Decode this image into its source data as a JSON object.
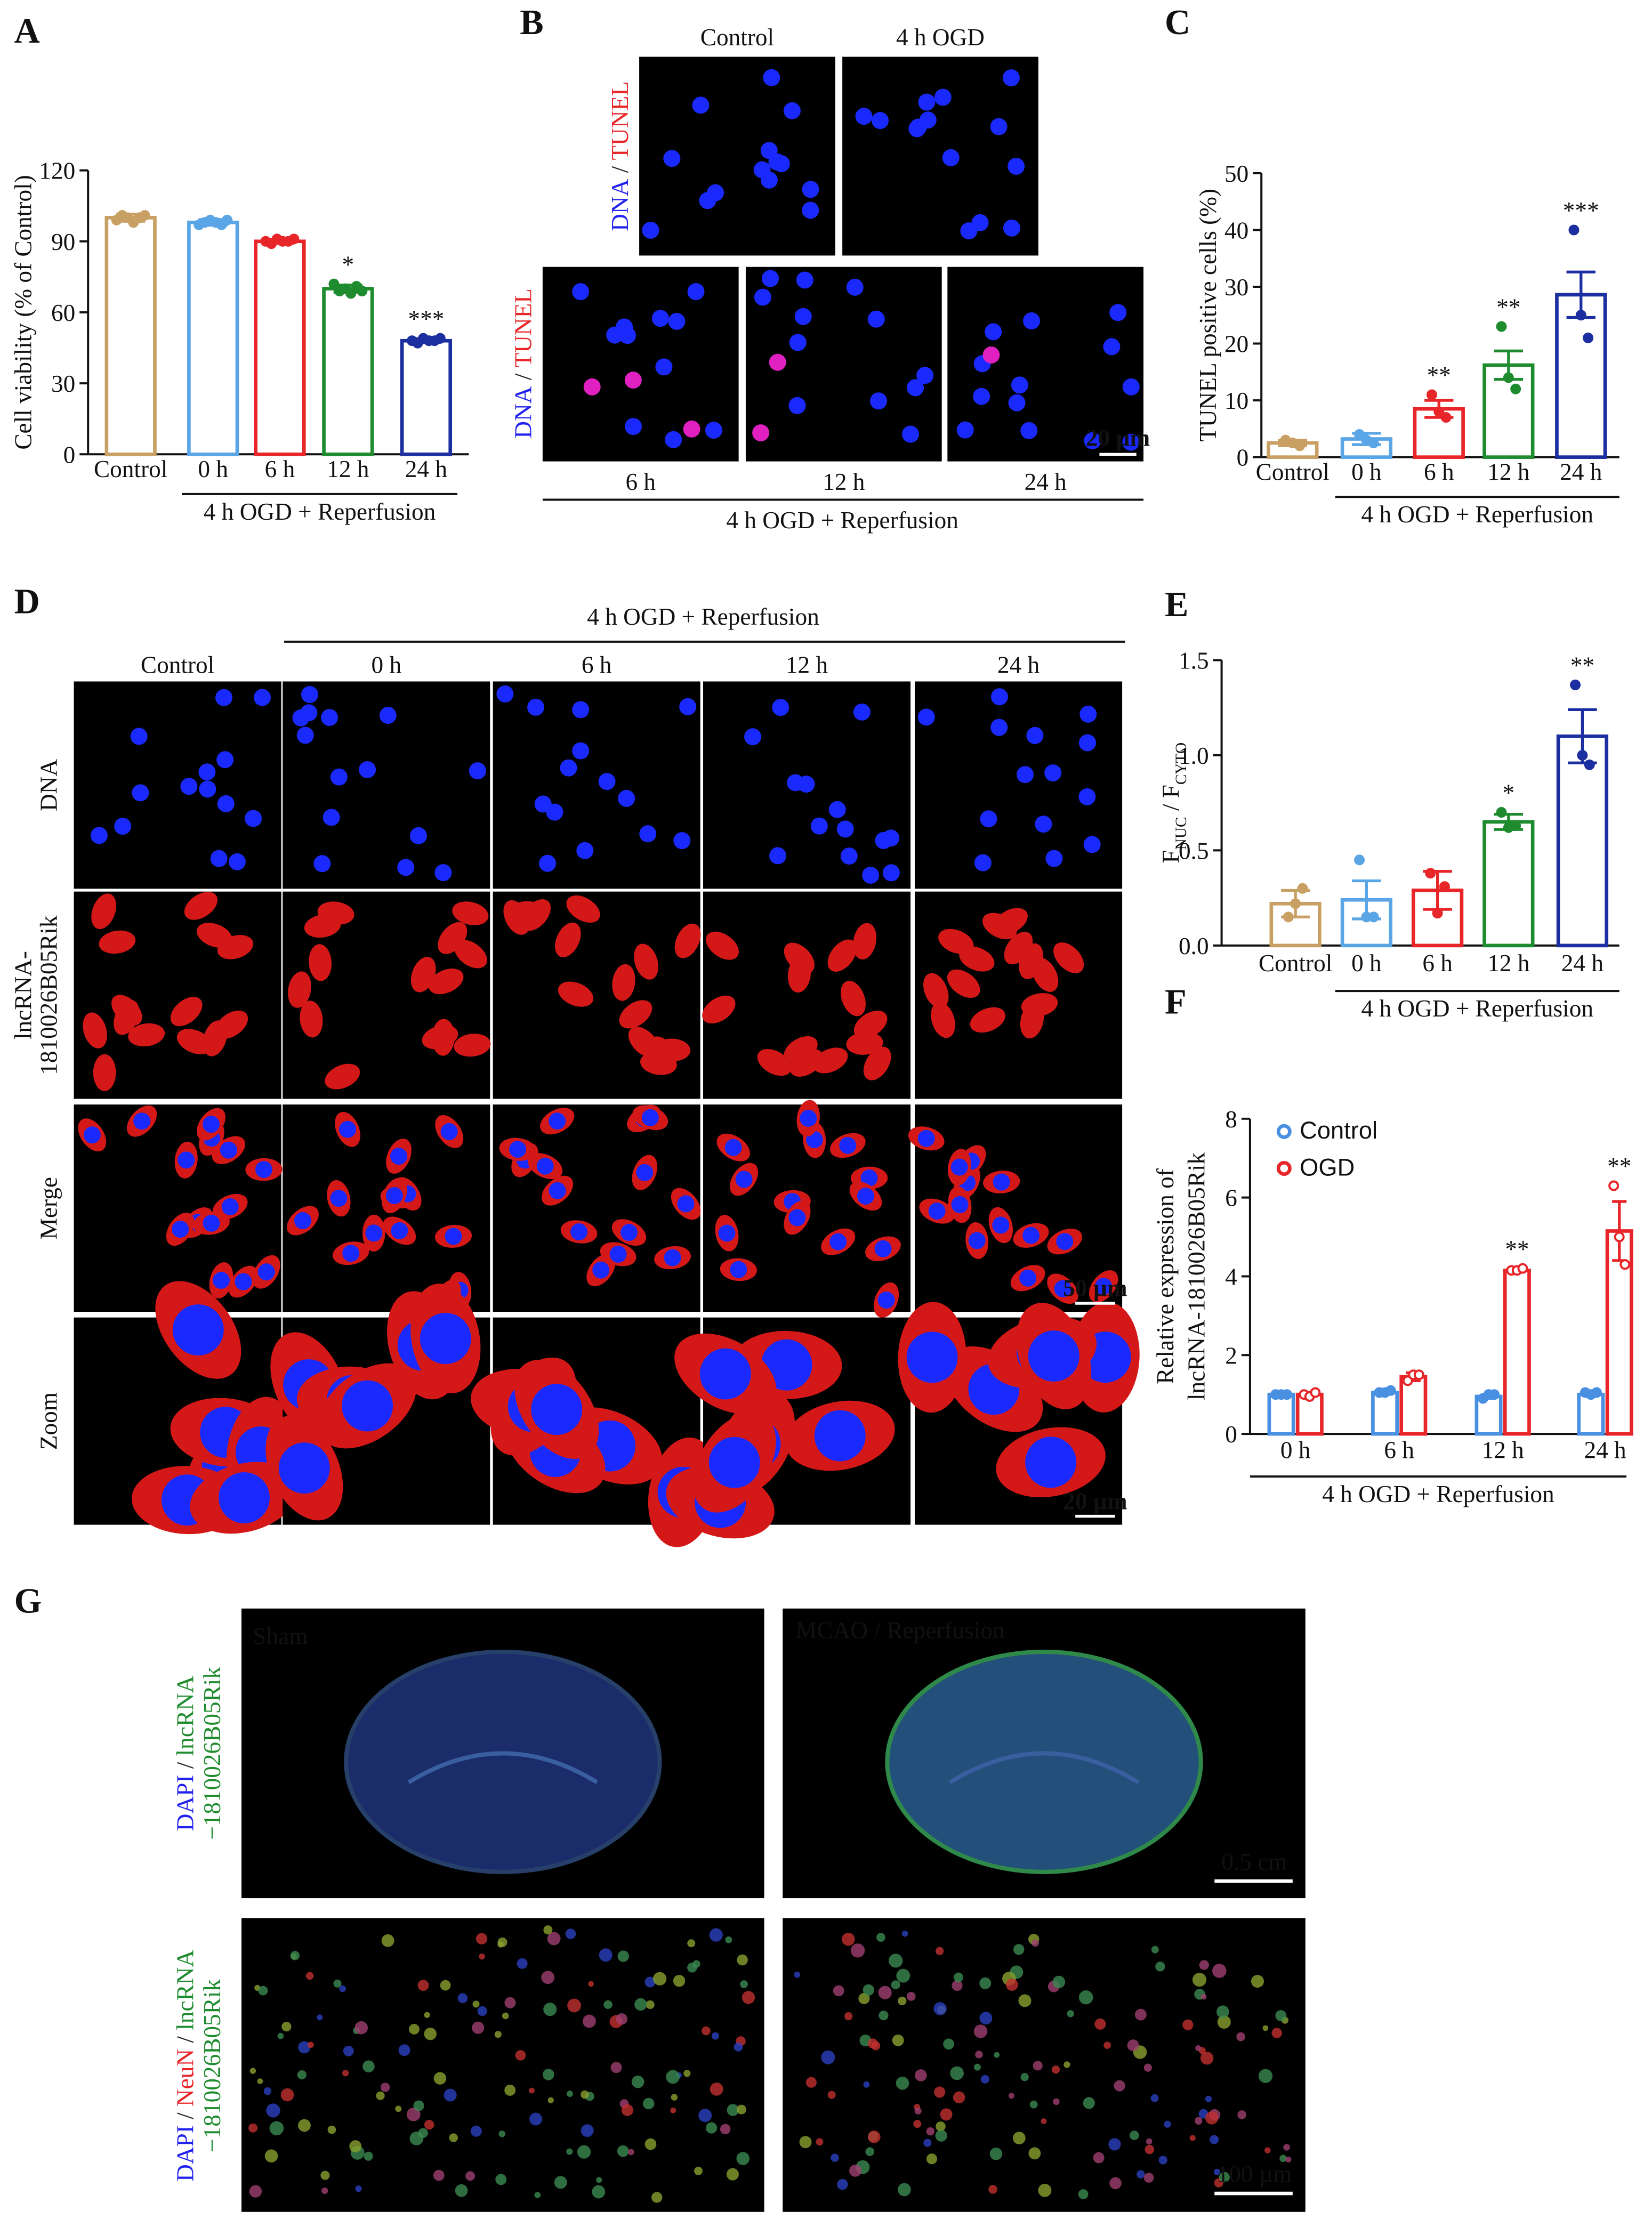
{
  "chart_data": [
    {
      "type": "bar",
      "panel": "A",
      "categories": [
        "Control",
        "0 h",
        "6 h",
        "12 h",
        "24 h"
      ],
      "values": [
        100,
        98,
        90,
        70,
        48
      ],
      "errors": [
        1.5,
        1.2,
        0.8,
        1.5,
        0.8
      ],
      "points": [
        [
          99,
          101,
          100,
          98,
          100,
          101
        ],
        [
          97,
          98,
          99,
          98,
          97,
          99
        ],
        [
          90,
          89,
          91,
          90,
          90,
          91
        ],
        [
          72,
          69,
          70,
          68,
          71,
          69
        ],
        [
          48,
          47,
          49,
          48,
          48,
          49
        ]
      ],
      "colors": [
        "#c8a063",
        "#5aa5e6",
        "#e8262a",
        "#1e8c2e",
        "#1c2fa0"
      ],
      "significance": [
        null,
        null,
        null,
        "*",
        "***"
      ],
      "group_label": "4 h OGD + Reperfusion",
      "ylabel": [
        "Cell viability (% of Control)"
      ],
      "ylim": [
        0,
        120
      ],
      "yticks": [
        0,
        30,
        60,
        90,
        120
      ]
    },
    {
      "type": "bar",
      "panel": "C",
      "categories": [
        "Control",
        "0 h",
        "6 h",
        "12 h",
        "24 h"
      ],
      "values": [
        2.5,
        3.2,
        8.5,
        16.2,
        28.6
      ],
      "errors": [
        0.5,
        1,
        1.5,
        2.5,
        4
      ],
      "points": [
        [
          3,
          2.5,
          2
        ],
        [
          4,
          3,
          2.5
        ],
        [
          11,
          8,
          7
        ],
        [
          23,
          14,
          12
        ],
        [
          40,
          25,
          21
        ]
      ],
      "colors": [
        "#c8a063",
        "#5aa5e6",
        "#e8262a",
        "#1e8c2e",
        "#1c2fa0"
      ],
      "significance": [
        null,
        null,
        "**",
        "**",
        "***"
      ],
      "group_label": "4 h OGD + Reperfusion",
      "ylabel": [
        "TUNEL positive cells (%)"
      ],
      "ylim": [
        0,
        50
      ],
      "yticks": [
        0,
        10,
        20,
        30,
        40,
        50
      ]
    },
    {
      "type": "bar",
      "panel": "E",
      "categories": [
        "Control",
        "0 h",
        "6 h",
        "12 h",
        "24 h"
      ],
      "values": [
        0.22,
        0.24,
        0.29,
        0.65,
        1.1
      ],
      "errors": [
        0.07,
        0.1,
        0.1,
        0.04,
        0.14
      ],
      "points": [
        [
          0.15,
          0.22,
          0.3
        ],
        [
          0.45,
          0.15,
          0.15
        ],
        [
          0.38,
          0.17,
          0.31
        ],
        [
          0.7,
          0.62,
          0.63
        ],
        [
          1.37,
          1.0,
          0.95
        ]
      ],
      "colors": [
        "#c8a063",
        "#5aa5e6",
        "#e8262a",
        "#1e8c2e",
        "#1c2fa0"
      ],
      "significance": [
        null,
        null,
        null,
        "*",
        "**"
      ],
      "group_label": "4 h OGD + Reperfusion",
      "ylabel_parts": [
        "F",
        "NUC",
        " / F",
        "CYTO"
      ],
      "ylim": [
        0,
        1.5
      ],
      "yticks": [
        {
          "value": 0,
          "label": "0.0"
        },
        0.5,
        {
          "value": 1,
          "label": "1.0"
        },
        1.5
      ]
    },
    {
      "type": "bar",
      "panel": "F",
      "categories": [
        "0 h",
        "6 h",
        "12 h",
        "24 h"
      ],
      "series": [
        {
          "name": "Control",
          "color": "#4a90e2",
          "hollow_points": false,
          "values": [
            1,
            1.05,
            0.95,
            1.0
          ],
          "errors": [
            0.03,
            0.03,
            0.05,
            0.03
          ],
          "points": [
            [
              1,
              1,
              1
            ],
            [
              1.05,
              1.05,
              1.1
            ],
            [
              0.9,
              1.0,
              1.0
            ],
            [
              1.05,
              1.0,
              1.05
            ]
          ],
          "significance": [
            null,
            null,
            null,
            null
          ]
        },
        {
          "name": "OGD",
          "color": "#e8262a",
          "hollow_points": true,
          "values": [
            1.0,
            1.45,
            4.15,
            5.15
          ],
          "errors": [
            0.05,
            0.1,
            0.03,
            0.75
          ],
          "points": [
            [
              1.0,
              0.95,
              1.05
            ],
            [
              1.35,
              1.5,
              1.5
            ],
            [
              4.15,
              4.15,
              4.2
            ],
            [
              6.3,
              5.0,
              4.3
            ]
          ],
          "significance": [
            null,
            null,
            "**",
            "**"
          ]
        }
      ],
      "legend": "upper left",
      "group_label": "4 h OGD + Reperfusion",
      "ylabel": [
        "Relative expression of",
        "lncRNA-1810026B05Rik"
      ],
      "ylim": [
        0,
        8
      ],
      "yticks": [
        0,
        2,
        4,
        6,
        8
      ]
    }
  ],
  "panel_b": {
    "panel": "B",
    "top_columns": [
      "Control",
      "4 h OGD"
    ],
    "bottom_columns": [
      "6 h",
      "12 h",
      "24 h"
    ],
    "group_label": "4 h OGD + Reperfusion",
    "scale_bar": "20 µm",
    "row_label": [
      {
        "text": "DNA",
        "color": "#2222ee"
      },
      {
        "text": " / ",
        "color": "#222222"
      },
      {
        "text": "TUNEL",
        "color": "#e8262a"
      }
    ]
  },
  "panel_d": {
    "panel": "D",
    "header": "4 h OGD + Reperfusion",
    "columns": [
      "Control",
      "0 h",
      "6 h",
      "12 h",
      "24 h"
    ],
    "rows": [
      {
        "lines": [
          "DNA"
        ],
        "color": "#2222ee"
      },
      {
        "lines": [
          "lncRNA-",
          "1810026B05Rik"
        ],
        "color": "#e8262a"
      },
      {
        "lines": [
          "Merge"
        ],
        "color": "#111111"
      },
      {
        "lines": [
          "Zoom"
        ],
        "color": "#111111"
      }
    ],
    "scale_bars": [
      "50 µm",
      "20 µm"
    ]
  },
  "panel_g": {
    "panel": "G",
    "columns": [
      "Sham",
      "MCAO / Reperfusion"
    ],
    "row_labels": [
      [
        [
          {
            "text": "DAPI",
            "color": "#2222ee"
          },
          {
            "text": " / ",
            "color": "#222222"
          },
          {
            "text": "lncRNA",
            "color": "#1e8c2e"
          }
        ],
        [
          {
            "text": "−1810026B05Rik",
            "color": "#1e8c2e"
          }
        ]
      ],
      [
        [
          {
            "text": "DAPI",
            "color": "#2222ee"
          },
          {
            "text": " / ",
            "color": "#222222"
          },
          {
            "text": "NeuN",
            "color": "#e8262a"
          },
          {
            "text": " / ",
            "color": "#222222"
          },
          {
            "text": "lncRNA",
            "color": "#1e8c2e"
          }
        ],
        [
          {
            "text": "−1810026B05Rik",
            "color": "#1e8c2e"
          }
        ]
      ]
    ],
    "scale_bars": [
      "0.5 cm",
      "100 µm"
    ]
  }
}
